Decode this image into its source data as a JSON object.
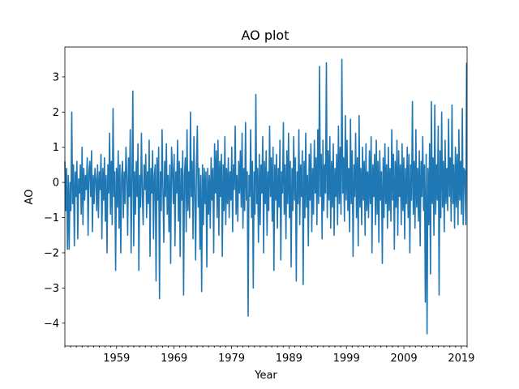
{
  "chart_data": {
    "type": "line",
    "title": "AO plot",
    "xlabel": "Year",
    "ylabel": "AO",
    "xlim": [
      "1950-01",
      "2019-12"
    ],
    "ylim": [
      -4.65,
      3.85
    ],
    "grid": false,
    "legend": "none",
    "x_major_ticks": [
      "1959",
      "1969",
      "1979",
      "1989",
      "1999",
      "2009",
      "2019"
    ],
    "y_ticks": [
      -4,
      -3,
      -2,
      -1,
      0,
      1,
      2,
      3
    ],
    "y_tick_labels": [
      "−4",
      "−3",
      "−2",
      "−1",
      "0",
      "1",
      "2",
      "3"
    ],
    "colors": {
      "line": "#1f77b4"
    },
    "series": [
      {
        "values": [
          0.6,
          -0.8,
          0.4,
          -1.9,
          0.2,
          -1.9,
          0.0,
          -0.8,
          2.0,
          -0.6,
          0.5,
          -1.8,
          0.3,
          -0.4,
          0.6,
          -1.6,
          0.1,
          -0.3,
          0.5,
          -0.9,
          1.0,
          -1.2,
          0.4,
          -0.5,
          0.2,
          -0.2,
          0.7,
          -1.5,
          0.3,
          0.6,
          -0.4,
          0.9,
          -1.4,
          0.2,
          -0.6,
          0.4,
          0.1,
          -0.8,
          0.5,
          -1.0,
          0.3,
          -0.2,
          0.8,
          -1.6,
          0.4,
          -0.5,
          0.7,
          -1.1,
          0.2,
          -2.0,
          0.5,
          -0.3,
          1.4,
          -0.9,
          0.6,
          -1.2,
          2.1,
          -0.4,
          0.3,
          -2.5,
          0.4,
          -0.7,
          0.9,
          -1.3,
          0.5,
          -2.0,
          0.2,
          0.6,
          -1.0,
          0.3,
          -0.6,
          1.0,
          0.2,
          -1.5,
          0.7,
          -0.4,
          1.5,
          -2.0,
          0.1,
          2.6,
          -1.8,
          0.3,
          -0.9,
          0.6,
          -0.4,
          1.1,
          -2.5,
          0.2,
          -0.7,
          1.4,
          -0.3,
          -1.2,
          0.5,
          -0.2,
          0.8,
          -1.0,
          0.3,
          -0.6,
          1.2,
          -2.1,
          0.4,
          -0.3,
          0.9,
          -1.6,
          0.2,
          0.5,
          -2.8,
          0.7,
          -0.5,
          1.0,
          -3.3,
          0.3,
          -0.8,
          1.5,
          -0.2,
          -1.7,
          0.6,
          -0.4,
          1.1,
          -0.9,
          0.2,
          -1.4,
          0.5,
          -2.3,
          1.0,
          0.4,
          -0.6,
          0.8,
          -1.8,
          0.3,
          -0.3,
          1.2,
          -1.1,
          0.6,
          -2.1,
          0.4,
          -0.5,
          0.9,
          -3.2,
          0.2,
          0.7,
          -1.4,
          1.5,
          -0.8,
          0.3,
          -1.0,
          2.0,
          -0.4,
          0.6,
          -1.6,
          1.3,
          -0.2,
          -2.2,
          0.5,
          1.6,
          -0.7,
          0.4,
          -1.9,
          0.2,
          -3.1,
          0.5,
          -1.2,
          0.4,
          -0.6,
          0.3,
          -2.4,
          0.4,
          -0.9,
          0.2,
          -1.3,
          0.7,
          -0.5,
          0.4,
          -2.0,
          1.1,
          -0.3,
          0.9,
          -1.0,
          1.2,
          -1.5,
          0.6,
          -0.4,
          0.8,
          -2.1,
          0.5,
          -0.8,
          1.3,
          -1.2,
          0.4,
          -0.6,
          0.7,
          -1.0,
          0.3,
          -0.5,
          1.0,
          -1.4,
          0.5,
          -0.2,
          1.6,
          -0.9,
          0.2,
          -1.1,
          0.6,
          -0.3,
          0.9,
          -0.7,
          1.4,
          -1.3,
          0.4,
          -0.8,
          1.7,
          -0.5,
          0.3,
          -3.8,
          0.2,
          -0.4,
          1.5,
          -1.0,
          0.6,
          -3.0,
          0.3,
          -0.9,
          2.5,
          -0.6,
          0.4,
          -1.7,
          0.8,
          -1.2,
          0.5,
          -0.3,
          1.3,
          -2.0,
          0.6,
          -0.6,
          0.9,
          -1.5,
          0.3,
          -0.8,
          1.6,
          -0.4,
          0.7,
          -1.1,
          1.0,
          -2.5,
          0.5,
          -0.5,
          0.8,
          -1.3,
          0.4,
          -0.7,
          1.2,
          -2.2,
          0.3,
          -0.3,
          1.7,
          -0.9,
          0.5,
          -1.6,
          0.9,
          -0.6,
          1.4,
          -1.0,
          0.6,
          -2.4,
          0.4,
          -0.8,
          1.3,
          -0.5,
          0.7,
          -2.8,
          0.3,
          -0.6,
          1.5,
          -1.2,
          0.5,
          -0.4,
          0.9,
          -2.9,
          0.6,
          -1.0,
          1.4,
          -0.7,
          0.2,
          -1.8,
          0.8,
          -0.5,
          1.1,
          -1.4,
          0.4,
          -0.9,
          1.2,
          -0.3,
          0.7,
          -1.2,
          1.5,
          -0.6,
          3.3,
          -0.4,
          0.8,
          -1.6,
          1.2,
          -0.8,
          0.5,
          -0.3,
          3.4,
          -1.0,
          0.9,
          -0.5,
          1.3,
          -1.3,
          0.6,
          -0.7,
          1.1,
          -1.5,
          0.4,
          -0.4,
          0.8,
          -1.2,
          1.6,
          -0.6,
          1.0,
          -0.9,
          3.5,
          -0.3,
          0.7,
          -1.1,
          1.9,
          -0.5,
          1.2,
          -0.8,
          0.4,
          -1.4,
          1.8,
          -0.6,
          0.9,
          -2.1,
          0.5,
          -0.4,
          1.4,
          -1.0,
          0.7,
          -1.8,
          1.9,
          -0.7,
          0.4,
          -1.2,
          1.0,
          -0.5,
          0.6,
          -1.5,
          1.1,
          -0.8,
          0.3,
          -1.0,
          0.9,
          -0.6,
          1.3,
          -2.0,
          0.5,
          -0.4,
          0.8,
          -1.2,
          1.2,
          -0.9,
          0.6,
          -1.7,
          0.9,
          -0.5,
          0.3,
          -2.3,
          0.7,
          -1.0,
          1.1,
          -0.6,
          0.5,
          -1.3,
          1.0,
          -0.8,
          0.4,
          -1.1,
          1.5,
          -0.5,
          0.8,
          -1.9,
          0.6,
          -0.7,
          1.2,
          -1.5,
          0.9,
          -0.4,
          0.5,
          -1.2,
          1.1,
          -0.8,
          0.7,
          -1.6,
          0.4,
          -0.6,
          1.0,
          -1.0,
          0.8,
          -2.0,
          0.5,
          -0.5,
          2.3,
          -0.9,
          0.6,
          -1.3,
          1.5,
          -0.7,
          0.4,
          -1.1,
          0.9,
          -1.8,
          0.6,
          -0.4,
          1.3,
          -0.8,
          0.5,
          -3.4,
          0.8,
          -4.3,
          0.4,
          -1.2,
          1.1,
          -2.6,
          2.3,
          -0.6,
          0.7,
          -1.5,
          2.2,
          -0.9,
          0.5,
          -0.5,
          1.6,
          -3.2,
          0.9,
          -1.0,
          2.0,
          -0.7,
          0.6,
          -1.4,
          1.2,
          -0.6,
          0.4,
          -0.8,
          1.8,
          -0.4,
          0.7,
          -1.1,
          2.2,
          -0.6,
          0.5,
          -1.3,
          1.0,
          -0.7,
          0.8,
          -1.2,
          1.5,
          -0.5,
          0.6,
          -0.9,
          2.1,
          -1.2,
          0.4,
          0.3,
          -1.2,
          3.4
        ]
      }
    ]
  }
}
